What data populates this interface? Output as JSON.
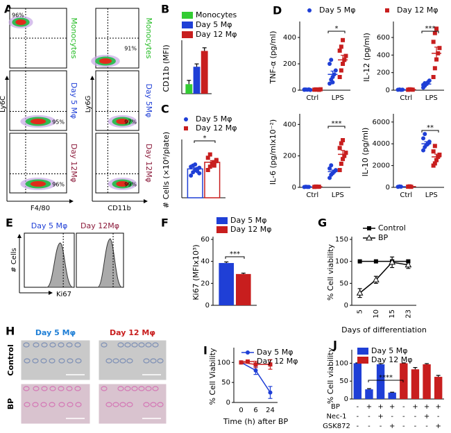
{
  "panel_labels": [
    "A",
    "B",
    "C",
    "D",
    "E",
    "F",
    "G",
    "H",
    "I",
    "J"
  ],
  "flow": {
    "x_labels": [
      "F4/80",
      "CD11b"
    ],
    "y_labels": [
      "Ly6C",
      "Ly6G"
    ],
    "rows": [
      {
        "name": "Monocytes",
        "name_right": "Monocytes",
        "percents": [
          "96%",
          "91%"
        ]
      },
      {
        "name": "Day 5 Mφ",
        "name_right": "Day 5Mφ",
        "percents": [
          "95%",
          "97%"
        ]
      },
      {
        "name": "Day 12Mφ",
        "name_right": "Day 12Mφ",
        "percents": [
          "96%",
          "99%"
        ]
      }
    ]
  },
  "histograms": {
    "titles": [
      "Day 5 Mφ",
      "Day 12Mφ"
    ],
    "y_label": "# Cells",
    "x_label": "Ki67"
  },
  "micrographs": {
    "columns": [
      "Day 5 Mφ",
      "Day 12 Mφ"
    ],
    "rows": [
      "Control",
      "BP"
    ]
  },
  "chart_data": [
    {
      "type": "bar",
      "ylabel": "CD11b (MFI)",
      "categories": [
        null
      ],
      "ylim": [
        0,
        16
      ],
      "series": [
        {
          "name": "Monocytes",
          "color": "#33cc33",
          "values": [
            3
          ],
          "errors": [
            1.2
          ]
        },
        {
          "name": "Day 5 Mφ",
          "color": "#1f3fd6",
          "values": [
            8.5
          ],
          "errors": [
            0.9
          ]
        },
        {
          "name": "Day 12 Mφ",
          "color": "#c81e1e",
          "values": [
            13.5
          ],
          "errors": [
            1
          ]
        }
      ]
    },
    {
      "type": "bar",
      "outline": true,
      "ylabel": "# Cells (×10⁶/plate)",
      "categories": [
        null
      ],
      "ylim": [
        0,
        5
      ],
      "annotation": "*",
      "series": [
        {
          "name": "Day 5 Mφ",
          "color": "#1f3fd6",
          "marker": "circle",
          "values": [
            2.6
          ],
          "errors": [
            0.1
          ],
          "points": [
            [
              2.0,
              2.3,
              2.5,
              2.6,
              2.7,
              2.8,
              2.9,
              3.0,
              2.4,
              2.2
            ]
          ]
        },
        {
          "name": "Day 12 Mφ",
          "color": "#c81e1e",
          "marker": "square",
          "values": [
            3.2
          ],
          "errors": [
            0.15
          ],
          "points": [
            [
              2.5,
              2.8,
              3.0,
              3.2,
              3.4,
              3.6,
              3.9,
              3.1,
              2.9,
              3.3
            ]
          ]
        }
      ]
    },
    {
      "type": "dotplot",
      "ylabel": "TNF-α (pg/ml)",
      "categories": [
        "Ctrl",
        "LPS"
      ],
      "ylim": [
        0,
        500
      ],
      "yticks": [
        0,
        200,
        400
      ],
      "annotation": "*",
      "series": [
        {
          "name": "Day 5 Mφ",
          "color": "#1f3fd6",
          "marker": "circle",
          "values": [
            4,
            120
          ],
          "errors": [
            1,
            25
          ],
          "points": [
            [
              3,
              5,
              4,
              6,
              2,
              5
            ],
            [
              50,
              80,
              100,
              120,
              150,
              200,
              230,
              60
            ]
          ]
        },
        {
          "name": "Day 12 Mφ",
          "color": "#c81e1e",
          "marker": "square",
          "values": [
            5,
            230
          ],
          "errors": [
            1,
            35
          ],
          "points": [
            [
              4,
              6,
              5,
              3,
              7
            ],
            [
              100,
              150,
              200,
              230,
              260,
              300,
              330,
              380
            ]
          ]
        }
      ]
    },
    {
      "type": "dotplot",
      "ylabel": "IL-12 (pg/ml)",
      "categories": [
        "Ctrl",
        "LPS"
      ],
      "ylim": [
        0,
        750
      ],
      "yticks": [
        0,
        200,
        400,
        600
      ],
      "annotation": "***",
      "series": [
        {
          "color": "#1f3fd6",
          "marker": "circle",
          "values": [
            6,
            70
          ],
          "errors": [
            2,
            12
          ],
          "points": [
            [
              5,
              8,
              4,
              6
            ],
            [
              30,
              50,
              70,
              90,
              110,
              60,
              80
            ]
          ]
        },
        {
          "color": "#c81e1e",
          "marker": "square",
          "values": [
            7,
            420
          ],
          "errors": [
            2,
            70
          ],
          "points": [
            [
              5,
              10,
              8,
              6
            ],
            [
              150,
              250,
              350,
              420,
              480,
              550,
              650,
              700
            ]
          ]
        }
      ]
    },
    {
      "type": "dotplot",
      "ylabel": "IL-6 (pg/mlx10⁻²)",
      "categories": [
        "Ctrl",
        "LPS"
      ],
      "ylim": [
        0,
        450
      ],
      "yticks": [
        0,
        200,
        400
      ],
      "annotation": "***",
      "series": [
        {
          "color": "#1f3fd6",
          "marker": "circle",
          "values": [
            3,
            100
          ],
          "errors": [
            1,
            10
          ],
          "points": [
            [
              2,
              4,
              3,
              3
            ],
            [
              60,
              80,
              90,
              100,
              110,
              120,
              140
            ]
          ]
        },
        {
          "color": "#c81e1e",
          "marker": "square",
          "values": [
            4,
            210
          ],
          "errors": [
            1,
            25
          ],
          "points": [
            [
              3,
              5,
              4,
              4
            ],
            [
              110,
              150,
              180,
              200,
              220,
              250,
              280,
              300
            ]
          ]
        }
      ]
    },
    {
      "type": "dotplot",
      "ylabel": "IL-10 (pg/ml)",
      "categories": [
        "Ctrl",
        "LPS"
      ],
      "ylim": [
        0,
        6500
      ],
      "yticks": [
        0,
        2000,
        4000,
        6000
      ],
      "annotation": "**",
      "series": [
        {
          "color": "#1f3fd6",
          "marker": "circle",
          "values": [
            60,
            4000
          ],
          "errors": [
            10,
            200
          ],
          "points": [
            [
              50,
              80,
              60
            ],
            [
              3400,
              3700,
              3900,
              4000,
              4200,
              4500,
              4900
            ]
          ]
        },
        {
          "color": "#c81e1e",
          "marker": "square",
          "values": [
            70,
            2800
          ],
          "errors": [
            10,
            250
          ],
          "points": [
            [
              60,
              90,
              50
            ],
            [
              2000,
              2200,
              2500,
              2800,
              3000,
              3300,
              3800
            ]
          ]
        }
      ]
    },
    {
      "type": "bar",
      "ylabel": "Ki67 (MFIx10³)",
      "categories": [
        null
      ],
      "ylim": [
        0,
        60
      ],
      "yticks": [
        0,
        20,
        40,
        60
      ],
      "annotation": "***",
      "series": [
        {
          "name": "Day 5 Mφ",
          "color": "#1f3fd6",
          "values": [
            38.5
          ],
          "errors": [
            1
          ]
        },
        {
          "name": "Day 12 Mφ",
          "color": "#c81e1e",
          "values": [
            28.5
          ],
          "errors": [
            0.8
          ]
        }
      ]
    },
    {
      "type": "line",
      "ylabel": "% Cell viability",
      "xlabel": "Days of differentiation",
      "categories": [
        "5",
        "10",
        "15",
        "23"
      ],
      "xtick_rotation": -90,
      "ylim": [
        0,
        150
      ],
      "yticks": [
        0,
        50,
        100,
        150
      ],
      "series": [
        {
          "name": "Control",
          "color": "#000000",
          "marker": "square",
          "values": [
            100,
            100,
            100,
            100
          ],
          "errors": [
            0,
            0,
            3,
            3
          ]
        },
        {
          "name": "BP",
          "color": "#000000",
          "marker": "triangle",
          "values": [
            28,
            58,
            98,
            92
          ],
          "errors": [
            10,
            8,
            12,
            8
          ]
        }
      ]
    },
    {
      "type": "line",
      "ylabel": "% Cell Viability",
      "xlabel": "Time (h) after BP",
      "categories": [
        "0",
        "6",
        "24"
      ],
      "ylim": [
        0,
        130
      ],
      "yticks": [
        0,
        50,
        100
      ],
      "series": [
        {
          "name": "Day 5 Mφ",
          "color": "#1f3fd6",
          "marker": "circle",
          "values": [
            100,
            80,
            25
          ],
          "errors": [
            2,
            10,
            15
          ]
        },
        {
          "name": "Day 12 Mφ",
          "color": "#c81e1e",
          "marker": "square",
          "values": [
            100,
            95,
            95
          ],
          "errors": [
            2,
            8,
            12
          ]
        }
      ]
    },
    {
      "type": "bar",
      "ylabel": "% Cell viability",
      "categories": [
        null,
        null,
        null,
        null,
        null,
        null,
        null,
        null
      ],
      "ylim": [
        0,
        130
      ],
      "yticks": [
        0,
        50,
        100
      ],
      "annotation": "****",
      "series": [
        {
          "name": "Day 5 Mφ",
          "color": "#1f3fd6",
          "values": [
            100,
            27,
            97,
            18,
            null,
            null,
            null,
            null
          ],
          "errors": [
            1,
            2,
            2,
            1,
            null,
            null,
            null,
            null
          ]
        },
        {
          "name": "Day 12 Mφ",
          "color": "#c81e1e",
          "values": [
            null,
            null,
            null,
            null,
            100,
            83,
            97,
            62
          ],
          "errors": [
            null,
            null,
            null,
            null,
            1,
            5,
            2,
            4
          ]
        }
      ],
      "treatments": [
        {
          "name": "BP",
          "signs": [
            "-",
            "+",
            "+",
            "+",
            "-",
            "+",
            "+",
            "+"
          ]
        },
        {
          "name": "Nec-1",
          "signs": [
            "-",
            "-",
            "+",
            "-",
            "-",
            "-",
            "+",
            "-"
          ]
        },
        {
          "name": "GSK872",
          "signs": [
            "-",
            "-",
            "-",
            "+",
            "-",
            "-",
            "-",
            "+"
          ]
        }
      ]
    }
  ]
}
